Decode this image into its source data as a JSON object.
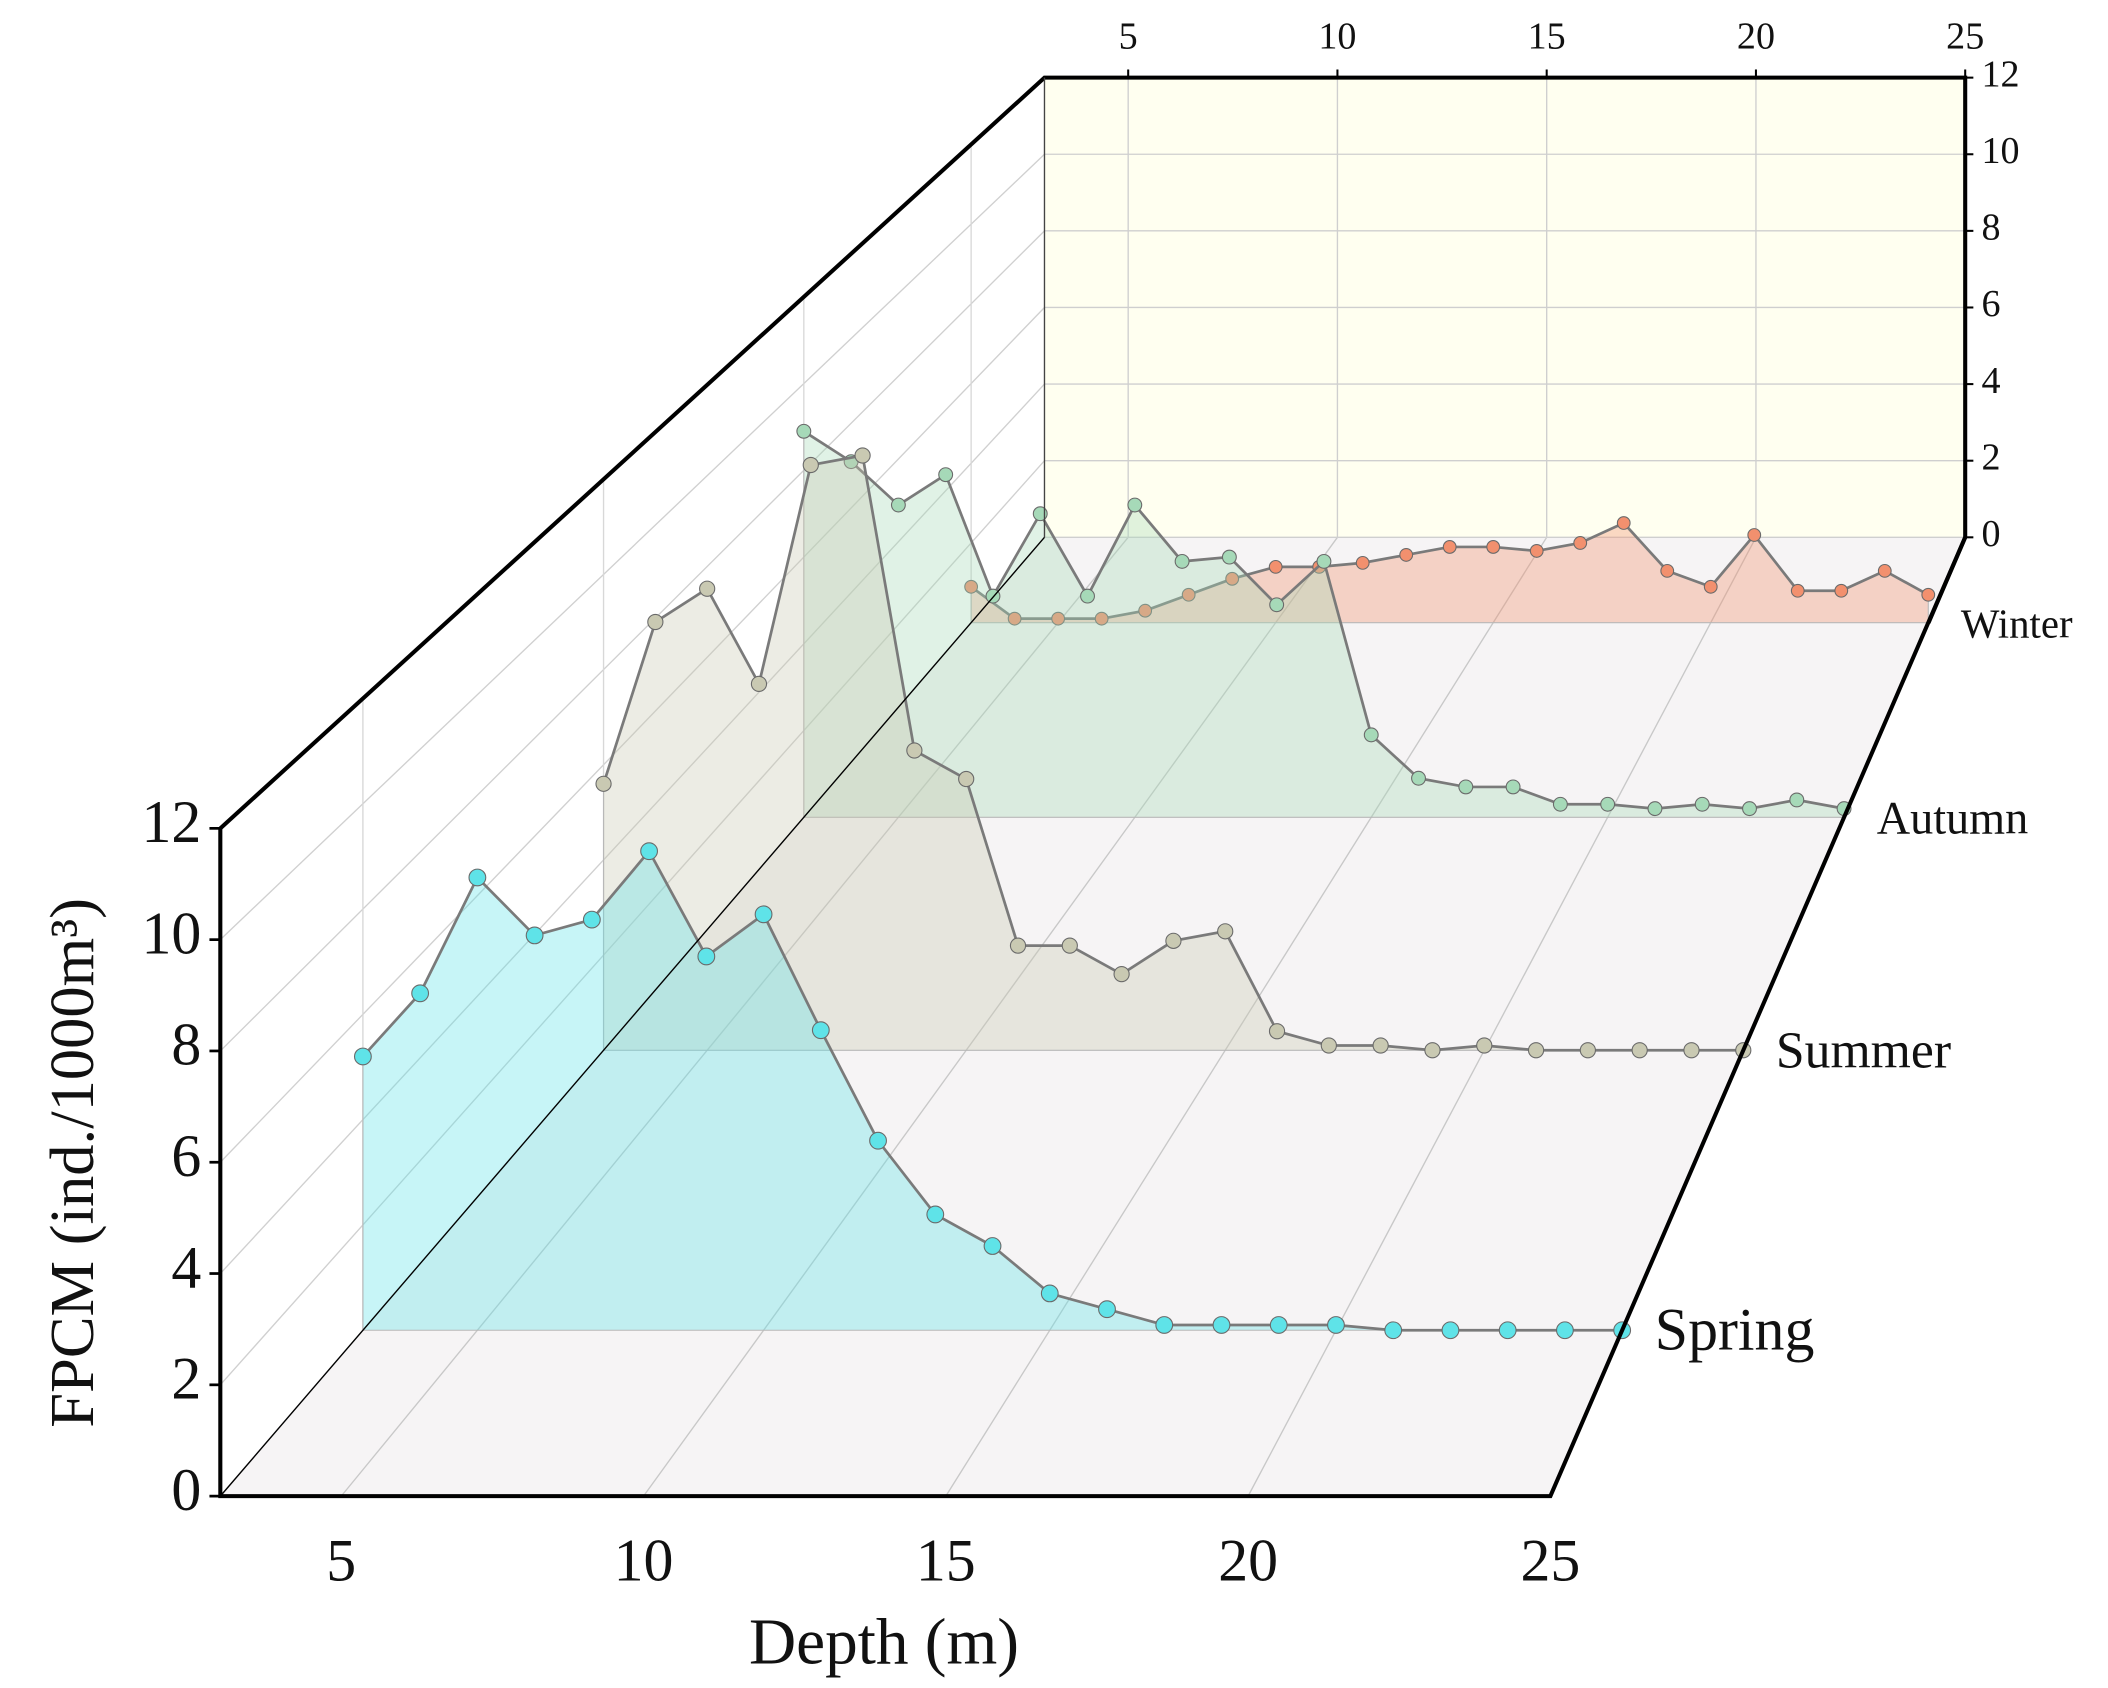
{
  "chart_data": {
    "type": "waterfall3d",
    "x_label": "Depth (m)",
    "y_label": "FPCM (ind./1000m³)",
    "xlim": [
      3,
      25
    ],
    "ylim": [
      0,
      12
    ],
    "xticks": [
      5,
      10,
      15,
      20,
      25
    ],
    "yticks": [
      0,
      2,
      4,
      6,
      8,
      10,
      12
    ],
    "grid": true,
    "x": [
      3,
      4,
      5,
      6,
      7,
      8,
      9,
      10,
      11,
      12,
      13,
      14,
      15,
      16,
      17,
      18,
      19,
      20,
      21,
      22,
      23,
      24,
      25
    ],
    "series": [
      {
        "name": "Spring",
        "color": "#5fe3e8",
        "values": [
          5.2,
          6.4,
          8.6,
          7.5,
          7.8,
          9.1,
          7.1,
          7.9,
          5.7,
          3.6,
          2.2,
          1.6,
          0.7,
          0.4,
          0.1,
          0.1,
          0.1,
          0.1,
          0,
          0,
          0,
          0,
          0
        ]
      },
      {
        "name": "Summer",
        "color": "#c9c9b2",
        "values": [
          5.6,
          9.0,
          9.7,
          7.7,
          12.3,
          12.5,
          6.3,
          5.7,
          2.2,
          2.2,
          1.6,
          2.3,
          2.5,
          0.4,
          0.1,
          0.1,
          0,
          0.1,
          0,
          0,
          0,
          0,
          0
        ]
      },
      {
        "name": "Autumn",
        "color": "#a6d9b8",
        "values": [
          8.9,
          8.2,
          7.2,
          7.9,
          5.1,
          7.0,
          5.1,
          7.2,
          5.9,
          6.0,
          4.9,
          5.9,
          1.9,
          0.9,
          0.7,
          0.7,
          0.3,
          0.3,
          0.2,
          0.3,
          0.2,
          0.4,
          0.2
        ]
      },
      {
        "name": "Winter",
        "color": "#f2906e",
        "values": [
          0.9,
          0.1,
          0.1,
          0.1,
          0.3,
          0.7,
          1.1,
          1.4,
          1.4,
          1.5,
          1.7,
          1.9,
          1.9,
          1.8,
          2.0,
          2.5,
          1.3,
          0.9,
          2.2,
          0.8,
          0.8,
          1.3,
          0.7
        ]
      }
    ]
  }
}
